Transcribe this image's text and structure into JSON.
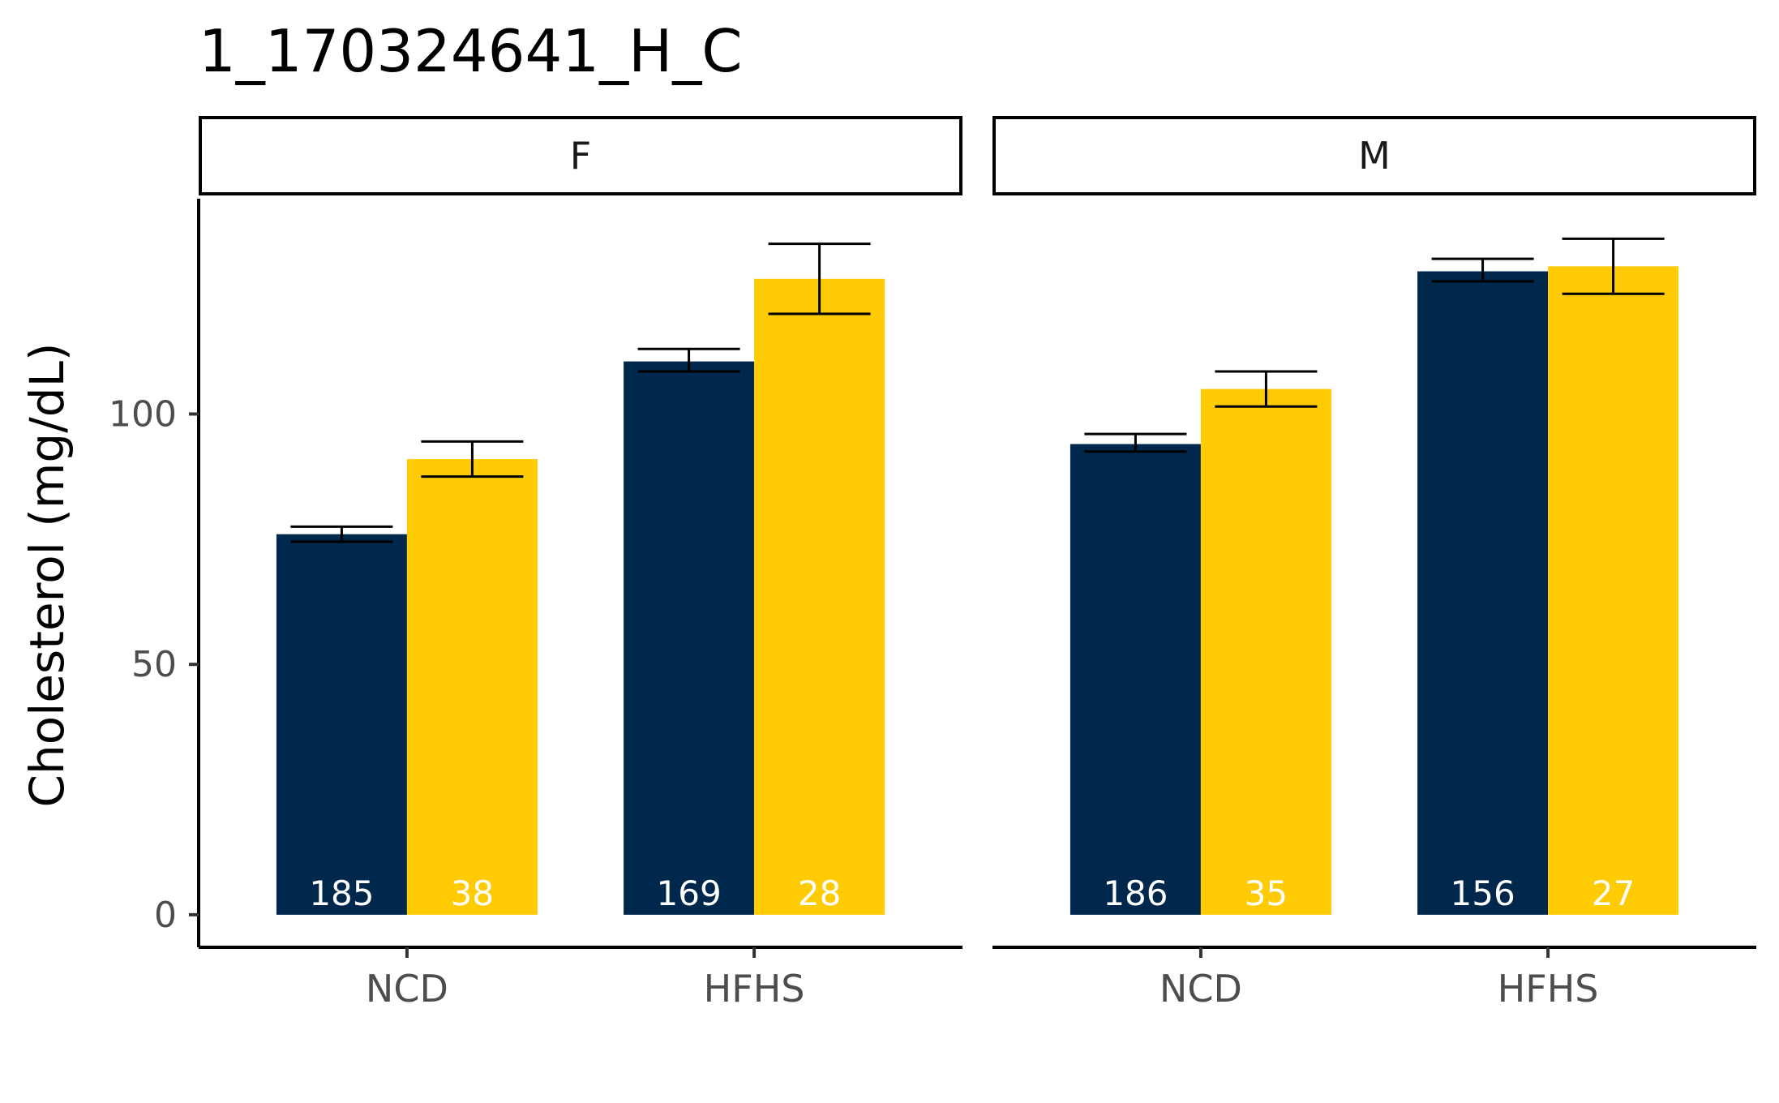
{
  "chart_data": {
    "type": "bar",
    "title": "1_170324641_H_C",
    "xlabel": "",
    "ylabel": "Cholesterol (mg/dL)",
    "ylim": [
      -6.5,
      143
    ],
    "yticks": [
      0,
      50,
      100
    ],
    "grid": false,
    "legend": "none",
    "categories": [
      "NCD",
      "HFHS"
    ],
    "panels": [
      {
        "label": "F",
        "groups": [
          {
            "category": "NCD",
            "bars": [
              {
                "series": 0,
                "value": 76,
                "err_low": 74.5,
                "err_high": 77.5,
                "n": "185"
              },
              {
                "series": 1,
                "value": 91,
                "err_low": 87.5,
                "err_high": 94.5,
                "n": "38"
              }
            ]
          },
          {
            "category": "HFHS",
            "bars": [
              {
                "series": 0,
                "value": 110.5,
                "err_low": 108.5,
                "err_high": 113,
                "n": "169"
              },
              {
                "series": 1,
                "value": 127,
                "err_low": 120,
                "err_high": 134,
                "n": "28"
              }
            ]
          }
        ]
      },
      {
        "label": "M",
        "groups": [
          {
            "category": "NCD",
            "bars": [
              {
                "series": 0,
                "value": 94,
                "err_low": 92.5,
                "err_high": 96,
                "n": "186"
              },
              {
                "series": 1,
                "value": 105,
                "err_low": 101.5,
                "err_high": 108.5,
                "n": "35"
              }
            ]
          },
          {
            "category": "HFHS",
            "bars": [
              {
                "series": 0,
                "value": 128.5,
                "err_low": 126.5,
                "err_high": 131,
                "n": "156"
              },
              {
                "series": 1,
                "value": 129.5,
                "err_low": 124,
                "err_high": 135,
                "n": "27"
              }
            ]
          }
        ]
      }
    ],
    "series_colors": [
      "#00274C",
      "#FFCB05"
    ]
  }
}
